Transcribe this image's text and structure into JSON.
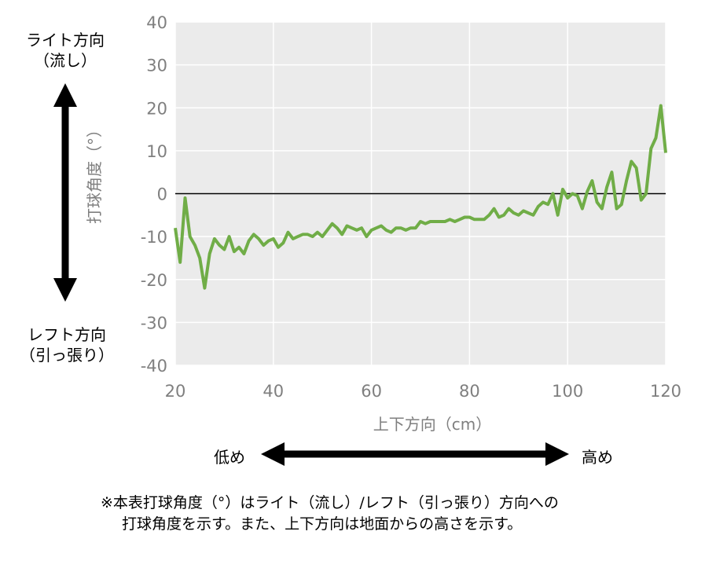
{
  "labels": {
    "right_dir_1": "ライト方向",
    "right_dir_2": "（流し）",
    "left_dir_1": "レフト方向",
    "left_dir_2": "（引っ張り）",
    "low": "低め",
    "high": "高め",
    "note_line1": "※本表打球角度（°）はライト（流し）/レフト（引っ張り）方向への",
    "note_line2": "打球角度を示す。また、上下方向は地面からの高さを示す。"
  },
  "colors": {
    "series": "#70ad47",
    "plot_bg": "#ebebeb",
    "grid": "#ffffff",
    "axis_text": "#7f7f7f",
    "arrow": "#000000"
  },
  "chart_data": {
    "type": "line",
    "xlabel": "上下方向（cm）",
    "ylabel": "打球角度（°）",
    "xlim": [
      20,
      120
    ],
    "ylim": [
      -40,
      40
    ],
    "xticks": [
      20,
      40,
      60,
      80,
      100,
      120
    ],
    "yticks": [
      40,
      30,
      20,
      10,
      0,
      -10,
      -20,
      -30,
      -40
    ],
    "grid": true,
    "zero_line": true,
    "series": [
      {
        "x": [
          20,
          21,
          22,
          23,
          24,
          25,
          26,
          27,
          28,
          29,
          30,
          31,
          32,
          33,
          34,
          35,
          36,
          37,
          38,
          39,
          40,
          41,
          42,
          43,
          44,
          45,
          46,
          47,
          48,
          49,
          50,
          51,
          52,
          53,
          54,
          55,
          56,
          57,
          58,
          59,
          60,
          61,
          62,
          63,
          64,
          65,
          66,
          67,
          68,
          69,
          70,
          71,
          72,
          73,
          74,
          75,
          76,
          77,
          78,
          79,
          80,
          81,
          82,
          83,
          84,
          85,
          86,
          87,
          88,
          89,
          90,
          91,
          92,
          93,
          94,
          95,
          96,
          97,
          98,
          99,
          100,
          101,
          102,
          103,
          104,
          105,
          106,
          107,
          108,
          109,
          110,
          111,
          112,
          113,
          114,
          115,
          116,
          117,
          118,
          119,
          120
        ],
        "y": [
          -8,
          -16,
          -1,
          -10,
          -12,
          -15,
          -22,
          -14,
          -10.5,
          -12,
          -13,
          -10,
          -13.5,
          -12.5,
          -14,
          -11,
          -9.5,
          -10.5,
          -12,
          -11,
          -10.5,
          -12.5,
          -11.5,
          -9,
          -10.5,
          -10,
          -9.5,
          -9.5,
          -10,
          -9,
          -10,
          -8.5,
          -7,
          -8,
          -9.5,
          -7.5,
          -8,
          -8.5,
          -8,
          -10,
          -8.5,
          -8,
          -7.5,
          -8.5,
          -9,
          -8,
          -8,
          -8.5,
          -8,
          -8,
          -6.5,
          -7,
          -6.5,
          -6.5,
          -6.5,
          -6.5,
          -6,
          -6.5,
          -6,
          -5.5,
          -5.5,
          -6,
          -6,
          -6,
          -5,
          -3.5,
          -5.5,
          -5,
          -3.5,
          -4.5,
          -5,
          -4,
          -4.5,
          -5,
          -3,
          -2,
          -2.5,
          0,
          -5,
          1,
          -1,
          0,
          -0.5,
          -3.5,
          0.5,
          3,
          -2,
          -3.5,
          1.5,
          5,
          -3.5,
          -2.5,
          3,
          7.5,
          6,
          -1.5,
          0,
          10.5,
          13,
          20.5,
          9.5
        ]
      }
    ]
  }
}
